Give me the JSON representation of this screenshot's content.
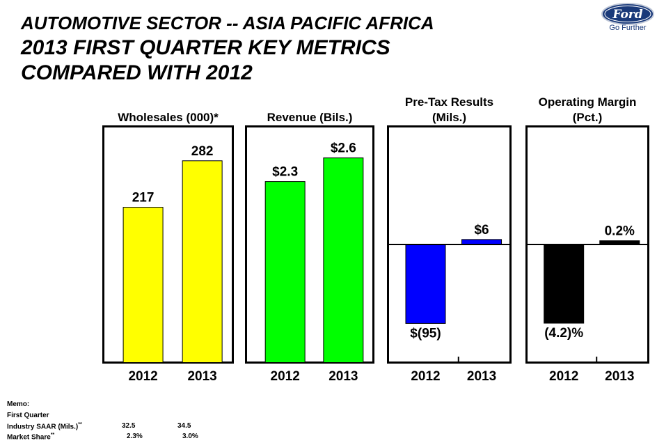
{
  "header": {
    "line1": "AUTOMOTIVE SECTOR -- ASIA PACIFIC AFRICA",
    "line2": "2013 FIRST QUARTER KEY METRICS",
    "line3": "COMPARED WITH 2012"
  },
  "logo": {
    "brand": "Ford",
    "tagline": "Go Further",
    "color": "#1a3a7a"
  },
  "chart_data": [
    {
      "type": "bar",
      "title": "Wholesales (000)*",
      "categories": [
        "2012",
        "2013"
      ],
      "values": [
        217,
        282
      ],
      "labels": [
        "217",
        "282"
      ],
      "colors": [
        "#ffff00",
        "#ffff00"
      ],
      "ylim": [
        0,
        330
      ]
    },
    {
      "type": "bar",
      "title": "Revenue (Bils.)",
      "categories": [
        "2012",
        "2013"
      ],
      "values": [
        2.3,
        2.6
      ],
      "labels": [
        "$2.3",
        "$2.6"
      ],
      "colors": [
        "#00ff00",
        "#00ff00"
      ],
      "ylim": [
        0,
        3.0
      ]
    },
    {
      "type": "bar",
      "title": "Pre-Tax Results (Mils.)",
      "categories": [
        "2012",
        "2013"
      ],
      "values": [
        -95,
        6
      ],
      "labels": [
        "$(95)",
        "$6"
      ],
      "colors": [
        "#0000ff",
        "#0000ff"
      ],
      "ylim": [
        -142,
        142
      ]
    },
    {
      "type": "bar",
      "title": "Operating Margin (Pct.)",
      "categories": [
        "2012",
        "2013"
      ],
      "values": [
        -4.2,
        0.2
      ],
      "labels": [
        "(4.2)%",
        "0.2%"
      ],
      "colors": [
        "#000000",
        "#000000"
      ],
      "ylim": [
        -6.3,
        6.3
      ]
    }
  ],
  "memo": {
    "heading": "Memo:",
    "period": "First Quarter",
    "rows": [
      {
        "label": "Industry SAAR (Mils.)",
        "mark": "**",
        "v2012": "32.5",
        "v2013": "34.5"
      },
      {
        "label": "Market Share",
        "mark": "**",
        "v2012": "2.3%",
        "v2013": "3.0%"
      }
    ]
  }
}
